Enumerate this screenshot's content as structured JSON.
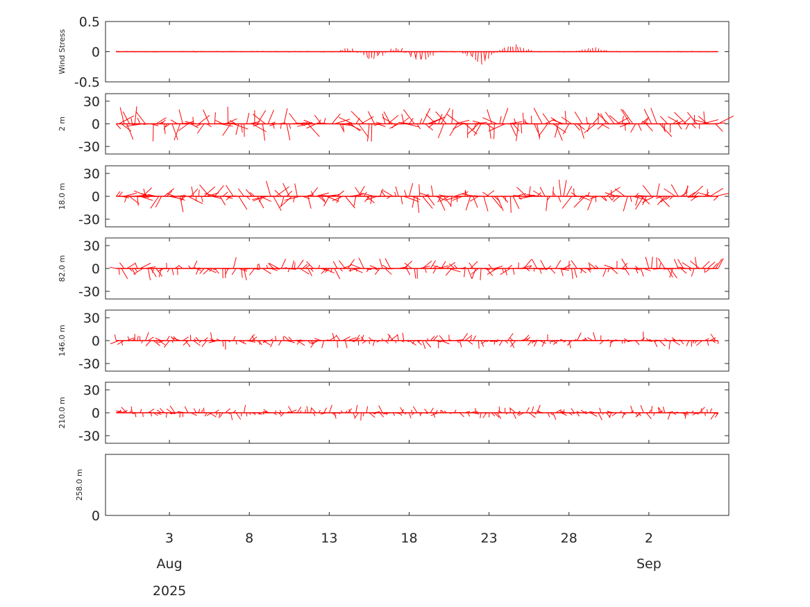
{
  "chart_data": {
    "type": "stick-plot",
    "color": "#ff0000",
    "x_range": [
      "2025-07-30",
      "2025-09-07"
    ],
    "x_ticks": [
      {
        "date": "2025-08-03",
        "label": "3"
      },
      {
        "date": "2025-08-08",
        "label": "8"
      },
      {
        "date": "2025-08-13",
        "label": "13"
      },
      {
        "date": "2025-08-18",
        "label": "18"
      },
      {
        "date": "2025-08-23",
        "label": "23"
      },
      {
        "date": "2025-08-28",
        "label": "28"
      },
      {
        "date": "2025-09-02",
        "label": "2"
      }
    ],
    "month_labels": [
      {
        "date": "2025-08-03",
        "label": "Aug"
      },
      {
        "date": "2025-09-02",
        "label": "Sep"
      }
    ],
    "year_label": {
      "date": "2025-08-03",
      "label": "2025"
    },
    "data_start": "2025-07-30T16:00",
    "data_end": "2025-09-06T08:00",
    "panels": [
      {
        "label": "Wind Stress",
        "ylim": [
          -0.5,
          0.5
        ],
        "yticks": [
          {
            "v": 0.5,
            "label": "0.5"
          },
          {
            "v": 0,
            "label": "0"
          },
          {
            "v": -0.5,
            "label": "-0.5"
          }
        ],
        "stick_amplitude": 0.03,
        "stick_events": [
          {
            "date": "2025-08-14",
            "amp": 0.08,
            "dir": 1
          },
          {
            "date": "2025-08-15",
            "amp": 0.18,
            "dir": -1
          },
          {
            "date": "2025-08-17",
            "amp": 0.1,
            "dir": 1
          },
          {
            "date": "2025-08-18",
            "amp": 0.22,
            "dir": -1
          },
          {
            "date": "2025-08-22",
            "amp": 0.2,
            "dir": -1
          },
          {
            "date": "2025-08-24",
            "amp": 0.15,
            "dir": 1
          },
          {
            "date": "2025-08-29",
            "amp": 0.07,
            "dir": 1
          }
        ]
      },
      {
        "label": "2 m",
        "ylim": [
          -40,
          40
        ],
        "yticks": [
          {
            "v": 30,
            "label": "30"
          },
          {
            "v": 0,
            "label": "0"
          },
          {
            "v": -30,
            "label": "-30"
          }
        ],
        "stick_amplitude": 24
      },
      {
        "label": "18.0 m",
        "ylim": [
          -40,
          40
        ],
        "yticks": [
          {
            "v": 30,
            "label": "30"
          },
          {
            "v": 0,
            "label": "0"
          },
          {
            "v": -30,
            "label": "-30"
          }
        ],
        "stick_amplitude": 22
      },
      {
        "label": "82.0 m",
        "ylim": [
          -40,
          40
        ],
        "yticks": [
          {
            "v": 30,
            "label": "30"
          },
          {
            "v": 0,
            "label": "0"
          },
          {
            "v": -30,
            "label": "-30"
          }
        ],
        "stick_amplitude": 16
      },
      {
        "label": "146.0 m",
        "ylim": [
          -40,
          40
        ],
        "yticks": [
          {
            "v": 30,
            "label": "30"
          },
          {
            "v": 0,
            "label": "0"
          },
          {
            "v": -30,
            "label": "-30"
          }
        ],
        "stick_amplitude": 12
      },
      {
        "label": "210.0 m",
        "ylim": [
          -40,
          40
        ],
        "yticks": [
          {
            "v": 30,
            "label": "30"
          },
          {
            "v": 0,
            "label": "0"
          },
          {
            "v": -30,
            "label": "-30"
          }
        ],
        "stick_amplitude": 11
      },
      {
        "label": "258.0 m",
        "ylim": [
          0,
          1
        ],
        "yticks": [
          {
            "v": 0,
            "label": "0"
          }
        ],
        "stick_amplitude": 0,
        "empty": true
      }
    ]
  }
}
